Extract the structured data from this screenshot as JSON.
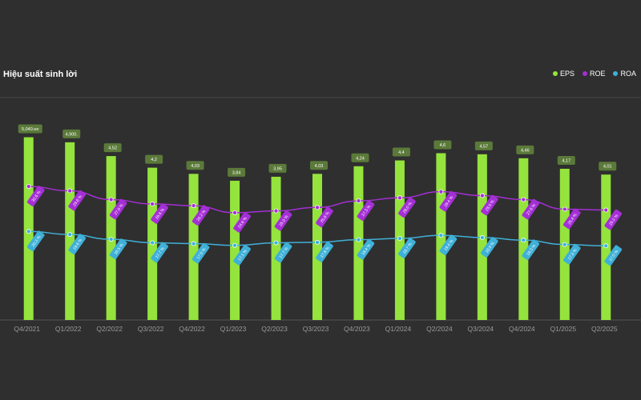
{
  "title": "Hiệu suất sinh lời",
  "colors": {
    "background": "#2f2f2f",
    "eps": "#95e33d",
    "roe": "#a52fd6",
    "roa": "#3fb0d8",
    "eps_label_bg": "#5b7a3a",
    "axis_label": "#9a9a9a"
  },
  "legend": [
    {
      "name": "EPS",
      "color": "#95e33d"
    },
    {
      "name": "ROE",
      "color": "#a52fd6"
    },
    {
      "name": "ROA",
      "color": "#3fb0d8"
    }
  ],
  "chart_data": {
    "type": "bar",
    "title": "Hiệu suất sinh lời",
    "categories": [
      "Q4/2021",
      "Q1/2022",
      "Q2/2022",
      "Q3/2022",
      "Q4/2022",
      "Q1/2023",
      "Q2/2023",
      "Q3/2023",
      "Q4/2023",
      "Q1/2024",
      "Q2/2024",
      "Q3/2024",
      "Q4/2024",
      "Q1/2025",
      "Q2/2025"
    ],
    "series": [
      {
        "name": "EPS",
        "kind": "bar",
        "values": [
          5040,
          4900,
          4520,
          4200,
          4030,
          3840,
          3950,
          4030,
          4240,
          4400,
          4600,
          4570,
          4460,
          4170,
          4010
        ],
        "labels": [
          "5,040.ee",
          "4,900.",
          "4,52",
          "4,2",
          "4,03",
          "3,84",
          "3,95",
          "4,03",
          "4,24",
          "4,4",
          "4,6",
          "4,57",
          "4,46",
          "4,17",
          "4,01"
        ]
      },
      {
        "name": "ROE",
        "kind": "line",
        "values": [
          30.6,
          29.6,
          27.6,
          26.6,
          26.2,
          24.6,
          25.0,
          25.8,
          27.3,
          28.0,
          29.4,
          28.5,
          27.6,
          25.4,
          25.2
        ],
        "labels": [
          "30.6 %",
          "29.6 %",
          "27.6 %",
          "26.6 %",
          "26.2 %",
          "24.6 %",
          "25.0 %",
          "25.8 %",
          "27.3 %",
          "28.0 %",
          "29.4 %",
          "28.5 %",
          "27.6 %",
          "25.4 %",
          "25.2 %"
        ]
      },
      {
        "name": "ROA",
        "kind": "line",
        "values": [
          20.3,
          19.6,
          18.5,
          17.7,
          17.5,
          17.1,
          17.7,
          17.8,
          18.4,
          18.7,
          19.4,
          18.9,
          18.3,
          17.3,
          17.0
        ],
        "labels": [
          "20.3 %",
          "19.6 %",
          "18.5 %",
          "17.7 %",
          "17.5 %",
          "17.1 %",
          "17.7 %",
          "17.8 %",
          "18.4 %",
          "18.7 %",
          "19.4 %",
          "18.9 %",
          "18.3 %",
          "17.3 %",
          "17.0 %"
        ]
      }
    ],
    "legend_position": "top-right",
    "grid": false
  }
}
